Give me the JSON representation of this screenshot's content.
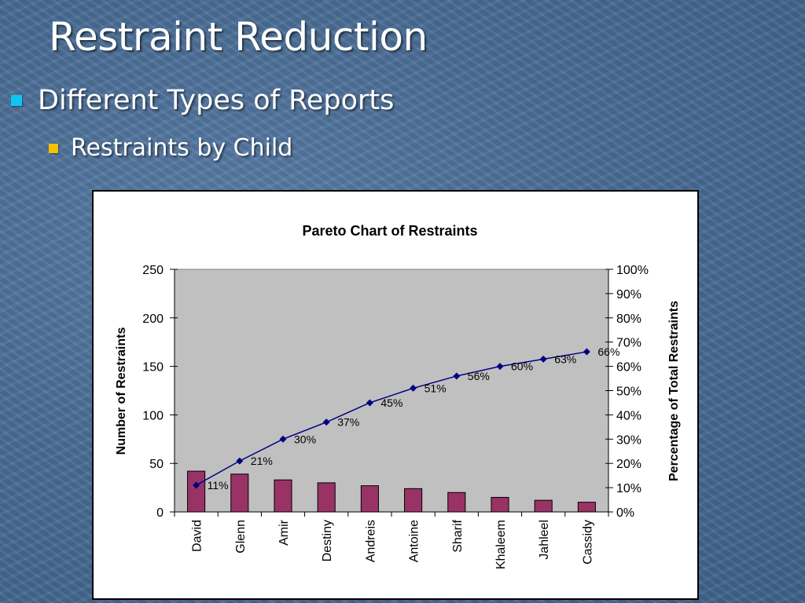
{
  "slide": {
    "title": "Restraint Reduction",
    "bullet1": "Different Types of Reports",
    "bullet2": "Restraints by Child"
  },
  "colors": {
    "bullet1": "#11c5f2",
    "bullet2": "#f3c200",
    "bar": "#993366",
    "line": "#000080",
    "plot_bg": "#c0c0c0"
  },
  "chart_data": {
    "type": "bar",
    "title": "Pareto Chart of Restraints",
    "ylabel": "Number of Restraints",
    "y2label": "Percentage of Total Restraints",
    "categories": [
      "David",
      "Glenn",
      "Amir",
      "Destiny",
      "Andreis",
      "Antoine",
      "Sharif",
      "Khaleem",
      "Jahleel",
      "Cassidy"
    ],
    "series": [
      {
        "type": "bar",
        "axis": "left",
        "values": [
          42,
          39,
          33,
          30,
          27,
          24,
          20,
          15,
          12,
          10
        ]
      },
      {
        "type": "line",
        "axis": "right",
        "marker": "diamond",
        "values": [
          11,
          21,
          30,
          37,
          45,
          51,
          56,
          60,
          63,
          66
        ],
        "labels": [
          "11%",
          "21%",
          "30%",
          "37%",
          "45%",
          "51%",
          "56%",
          "60%",
          "63%",
          "66%"
        ]
      }
    ],
    "ylim": [
      0,
      250
    ],
    "yticks": [
      "0",
      "50",
      "100",
      "150",
      "200",
      "250"
    ],
    "y2lim": [
      0,
      100
    ],
    "y2ticks": [
      "0%",
      "10%",
      "20%",
      "30%",
      "40%",
      "50%",
      "60%",
      "70%",
      "80%",
      "90%",
      "100%"
    ],
    "grid": false,
    "legend": "none"
  }
}
